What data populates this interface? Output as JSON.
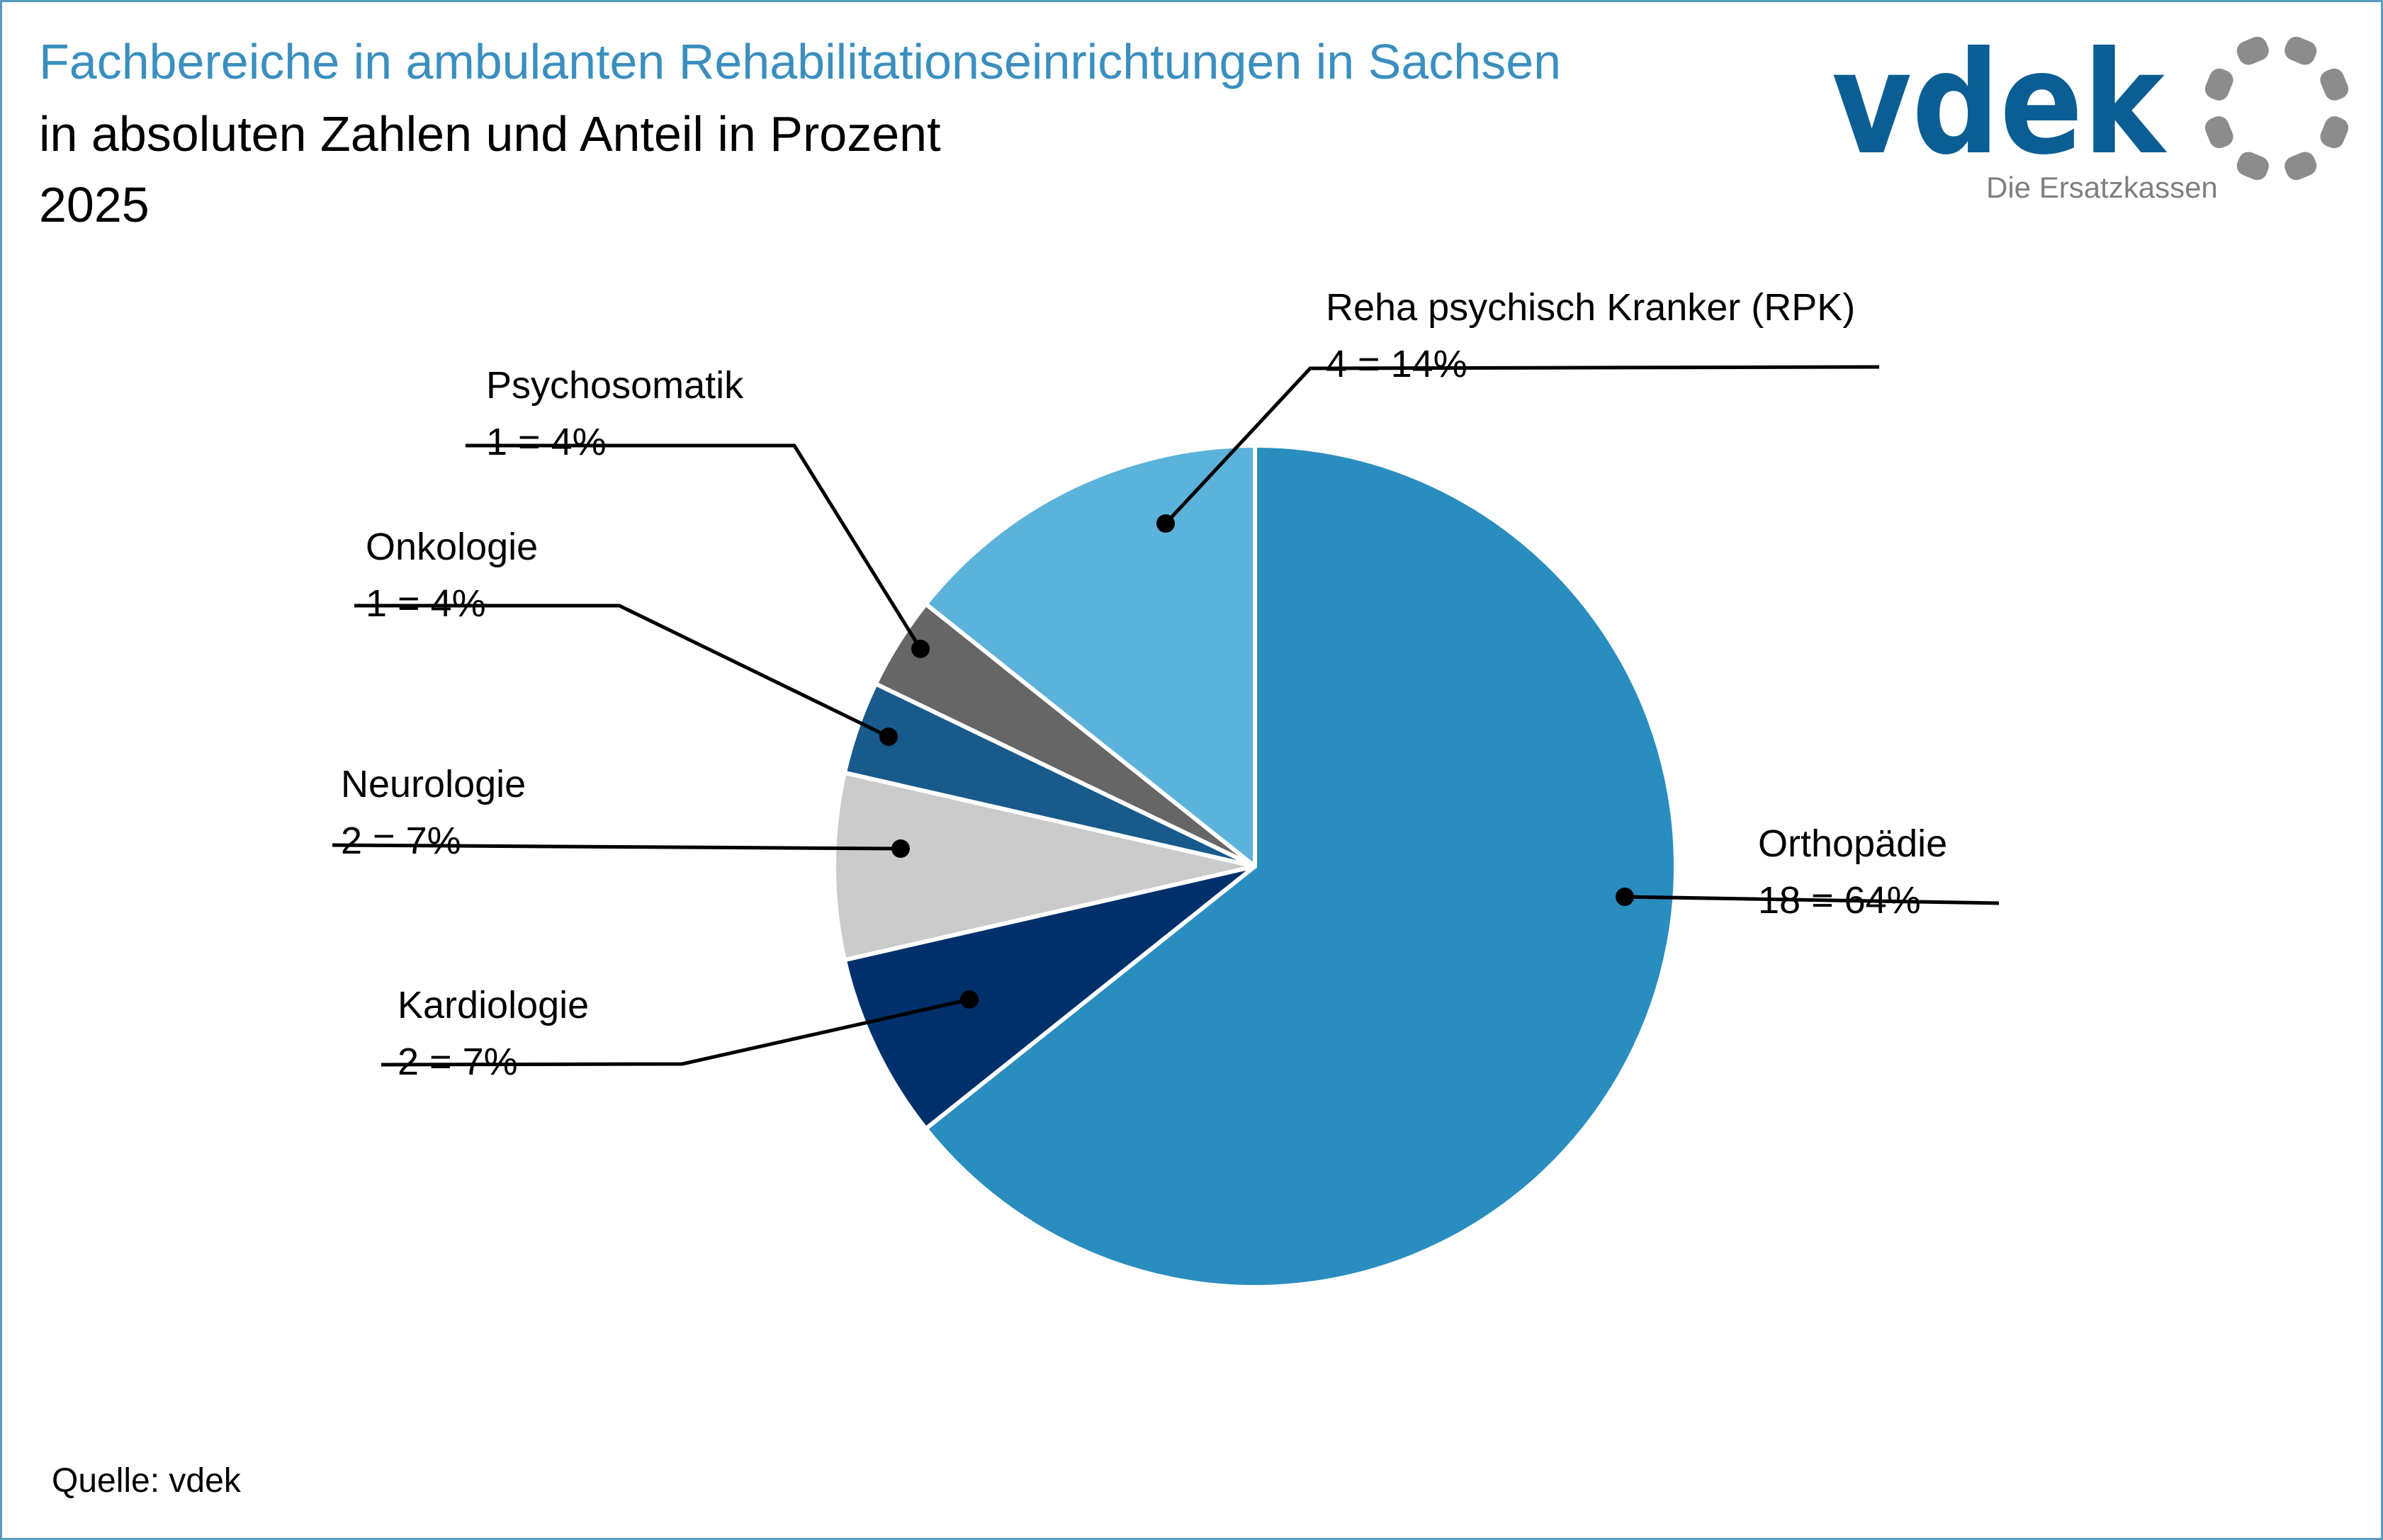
{
  "header": {
    "title": "Fachbereiche in ambulanten Rehabilitationseinrichtungen in Sachsen",
    "subtitle": "in absoluten Zahlen und Anteil in Prozent",
    "year": "2025"
  },
  "logo": {
    "wordmark": "vdek",
    "tagline": "Die Ersatzkassen",
    "wordmark_color": "#0b5e93",
    "tagline_color": "#7f7f7f",
    "ring_color": "#8c8c8c"
  },
  "footer": {
    "source": "Quelle: vdek"
  },
  "chart_data": {
    "type": "pie",
    "start_angle_deg": 0,
    "direction": "clockwise",
    "slices": [
      {
        "name": "Orthopädie",
        "count": 18,
        "percent": 64,
        "label": "18 = 64%",
        "color": "#2a8dbf"
      },
      {
        "name": "Kardiologie",
        "count": 2,
        "percent": 7,
        "label": "2 = 7%",
        "color": "#00306b"
      },
      {
        "name": "Neurologie",
        "count": 2,
        "percent": 7,
        "label": "2 = 7%",
        "color": "#cbcbcb"
      },
      {
        "name": "Onkologie",
        "count": 1,
        "percent": 4,
        "label": "1 = 4%",
        "color": "#185a8c"
      },
      {
        "name": "Psychosomatik",
        "count": 1,
        "percent": 4,
        "label": "1 = 4%",
        "color": "#666666"
      },
      {
        "name": "Reha psychisch Kranker (RPK)",
        "count": 4,
        "percent": 14,
        "label": "4 = 14%",
        "color": "#5bb2db"
      }
    ]
  }
}
